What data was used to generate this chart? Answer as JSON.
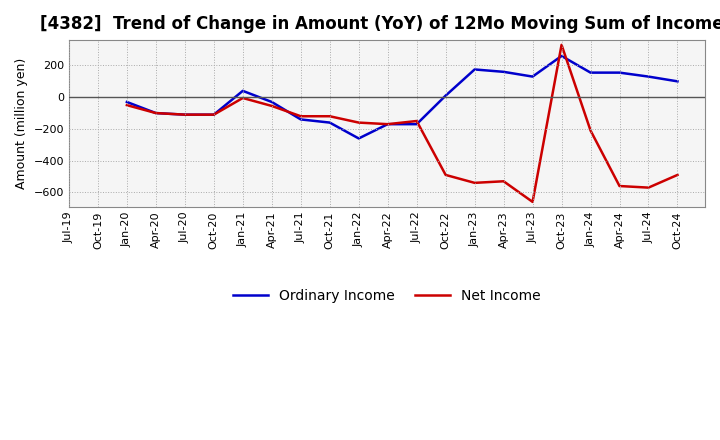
{
  "title": "[4382]  Trend of Change in Amount (YoY) of 12Mo Moving Sum of Incomes",
  "ylabel": "Amount (million yen)",
  "xlabels": [
    "Jul-19",
    "Oct-19",
    "Jan-20",
    "Apr-20",
    "Jul-20",
    "Oct-20",
    "Jan-21",
    "Apr-21",
    "Jul-21",
    "Oct-21",
    "Jan-22",
    "Apr-22",
    "Jul-22",
    "Oct-22",
    "Jan-23",
    "Apr-23",
    "Jul-23",
    "Oct-23",
    "Jan-24",
    "Apr-24",
    "Jul-24",
    "Oct-24"
  ],
  "ordinary_income": [
    null,
    null,
    -30,
    -100,
    -110,
    -110,
    40,
    -30,
    -140,
    -160,
    -260,
    -170,
    -170,
    10,
    175,
    160,
    130,
    260,
    155,
    155,
    130,
    100
  ],
  "net_income": [
    null,
    null,
    -50,
    -100,
    -110,
    -110,
    -5,
    -55,
    -120,
    -120,
    -160,
    -170,
    -150,
    -490,
    -540,
    -530,
    -660,
    330,
    -210,
    -560,
    -570,
    -490
  ],
  "ylim": [
    -690,
    360
  ],
  "yticks": [
    -600,
    -400,
    -200,
    0,
    200
  ],
  "ordinary_color": "#0000cc",
  "net_color": "#cc0000",
  "background_color": "#ffffff",
  "plot_bg_color": "#f5f5f5",
  "grid_color": "#aaaaaa",
  "zero_line_color": "#555555",
  "legend_ordinary": "Ordinary Income",
  "legend_net": "Net Income",
  "title_fontsize": 12,
  "label_fontsize": 9,
  "tick_fontsize": 8,
  "legend_fontsize": 10
}
